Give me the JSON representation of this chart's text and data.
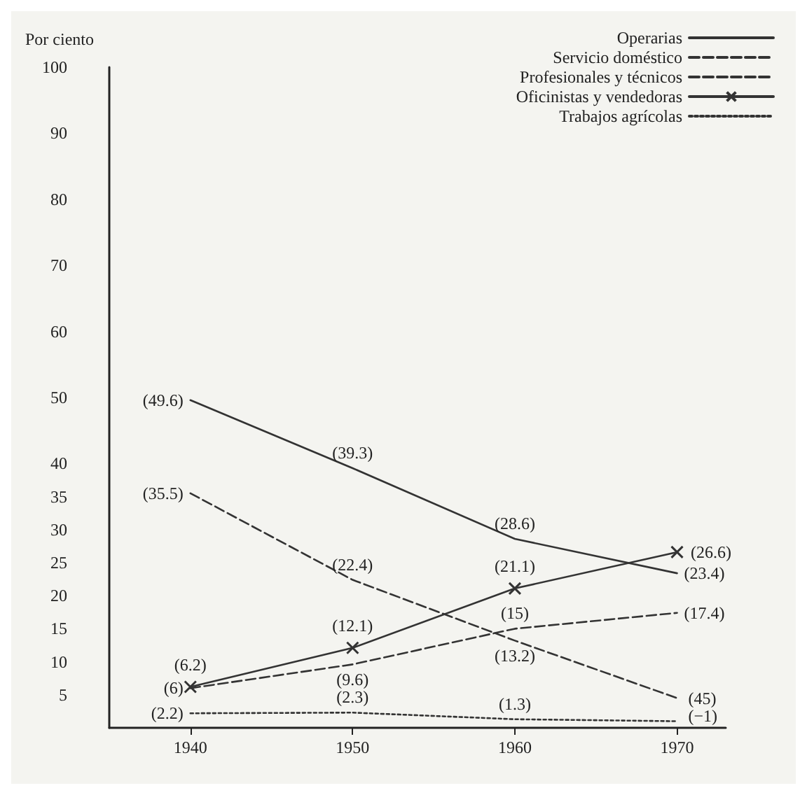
{
  "chart_data": {
    "type": "line",
    "ylabel": "Por ciento",
    "x": [
      1940,
      1950,
      1960,
      1970
    ],
    "xlim": [
      1935,
      1973
    ],
    "xticks": [
      1940,
      1950,
      1960,
      1970
    ],
    "ylim": [
      0,
      100
    ],
    "yticks": [
      5,
      10,
      15,
      20,
      25,
      30,
      35,
      40,
      50,
      60,
      70,
      80,
      90,
      100
    ],
    "grid": false,
    "legend": "top right",
    "marker": "none",
    "series": [
      {
        "name": "Operarias",
        "color": "#333333",
        "line_style": "solid",
        "values": [
          49.6,
          39.3,
          28.6,
          23.4
        ],
        "value_labels": [
          "(49.6)",
          "(39.3)",
          "(28.6)",
          "(23.4)"
        ]
      },
      {
        "name": "Servicio doméstico",
        "color": "#333333",
        "line_style": "dashed",
        "values": [
          35.5,
          22.4,
          13.2,
          4.5
        ],
        "value_labels": [
          "(35.5)",
          "(22.4)",
          "(13.2)",
          null
        ]
      },
      {
        "name": "Profesionales y técnicos",
        "color": "#333333",
        "line_style": "dashed",
        "values": [
          6,
          9.6,
          15,
          17.4
        ],
        "value_labels": [
          "(6)",
          "(9.6)",
          "(15)",
          "(17.4)"
        ]
      },
      {
        "name": "Oficinistas y vendedoras",
        "color": "#333333",
        "line_style": "solid",
        "marker": "cross",
        "values": [
          6.2,
          12.1,
          21.1,
          26.6
        ],
        "value_labels": [
          "(6.2)",
          "(12.1)",
          "(21.1)",
          "(26.6)"
        ]
      },
      {
        "name": "Trabajos agrícolas",
        "color": "#333333",
        "line_style": "dotted",
        "values": [
          2.2,
          2.3,
          1.3,
          1
        ],
        "value_labels": [
          "(2.2)",
          "(2.3)",
          "(1.3)",
          null
        ]
      }
    ],
    "annotations": [
      {
        "text": "(45)",
        "x": 1970,
        "y": 4.5
      },
      {
        "text": "(−1)",
        "x": 1970,
        "y": 1
      }
    ]
  }
}
